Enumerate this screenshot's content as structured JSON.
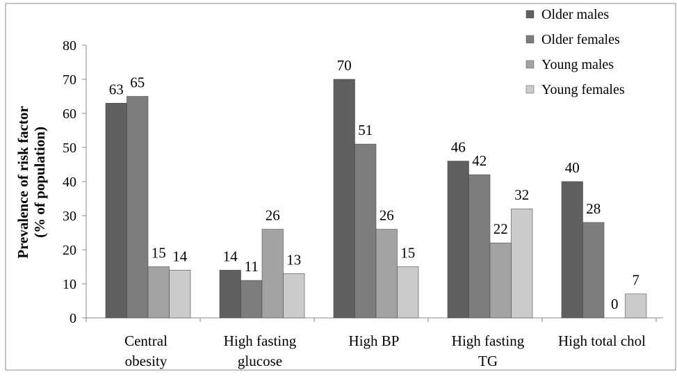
{
  "chart_data": {
    "type": "bar",
    "ylabel_lines": [
      "Prevalence of risk factor",
      "(% of population)"
    ],
    "ylim": [
      0,
      80
    ],
    "yticks": [
      0,
      10,
      20,
      30,
      40,
      50,
      60,
      70,
      80
    ],
    "categories": [
      [
        "Central",
        "obesity"
      ],
      [
        "High fasting",
        "glucose"
      ],
      [
        "High BP"
      ],
      [
        "High fasting",
        "TG"
      ],
      [
        "High total chol"
      ]
    ],
    "series": [
      {
        "name": "Older males",
        "color": "#5f5f5f",
        "values": [
          63,
          14,
          70,
          46,
          40
        ]
      },
      {
        "name": "Older females",
        "color": "#7d7d7d",
        "values": [
          65,
          11,
          51,
          42,
          28
        ]
      },
      {
        "name": "Young males",
        "color": "#a3a3a3",
        "values": [
          15,
          26,
          26,
          22,
          0
        ]
      },
      {
        "name": "Young females",
        "color": "#cbcbcb",
        "values": [
          14,
          13,
          15,
          32,
          7
        ]
      }
    ],
    "legend_position": "top-right",
    "grid": false
  }
}
